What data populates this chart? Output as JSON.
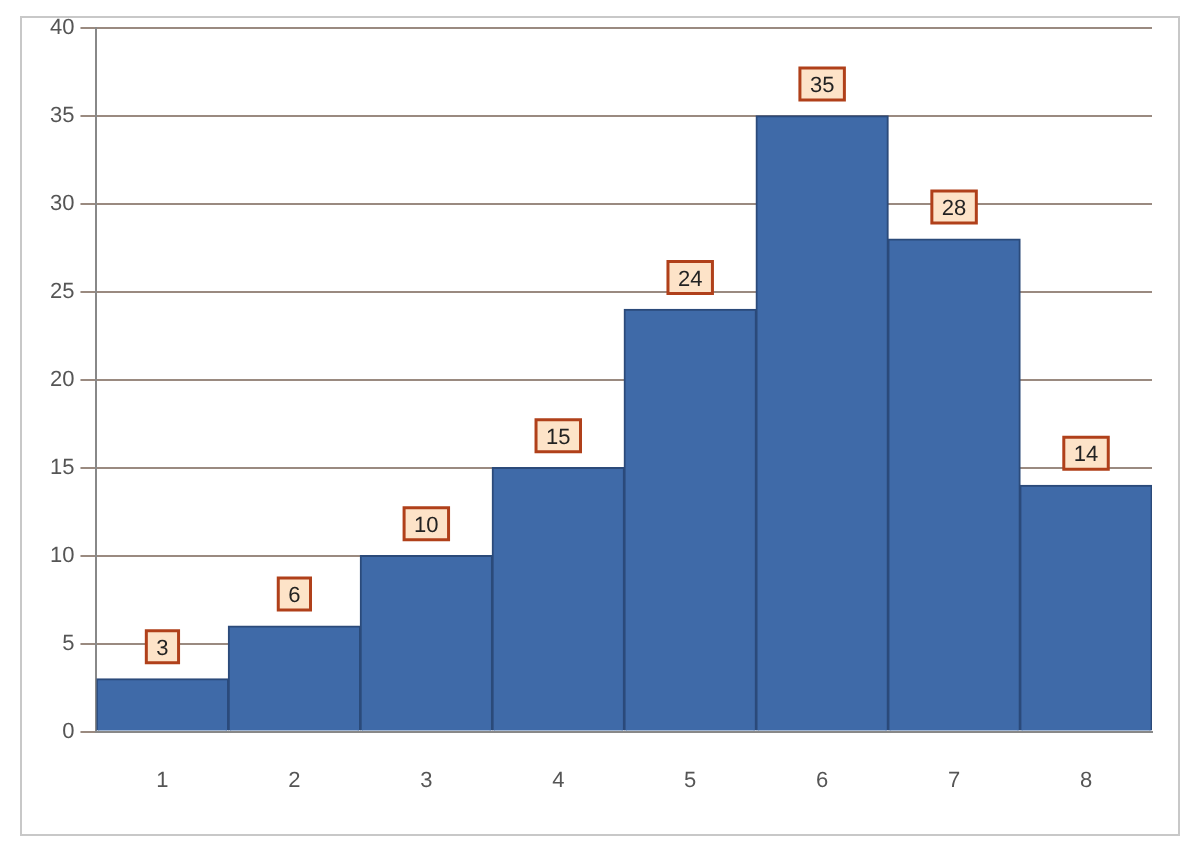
{
  "chart_data": {
    "type": "bar",
    "categories": [
      "1",
      "2",
      "3",
      "4",
      "5",
      "6",
      "7",
      "8"
    ],
    "values": [
      3,
      6,
      10,
      15,
      24,
      35,
      28,
      14
    ],
    "color": "#3f6aa8",
    "ylim": [
      0,
      40
    ],
    "yticks": [
      0,
      5,
      10,
      15,
      20,
      25,
      30,
      35,
      40
    ],
    "grid": "y",
    "data_labels": true,
    "legend": false
  }
}
